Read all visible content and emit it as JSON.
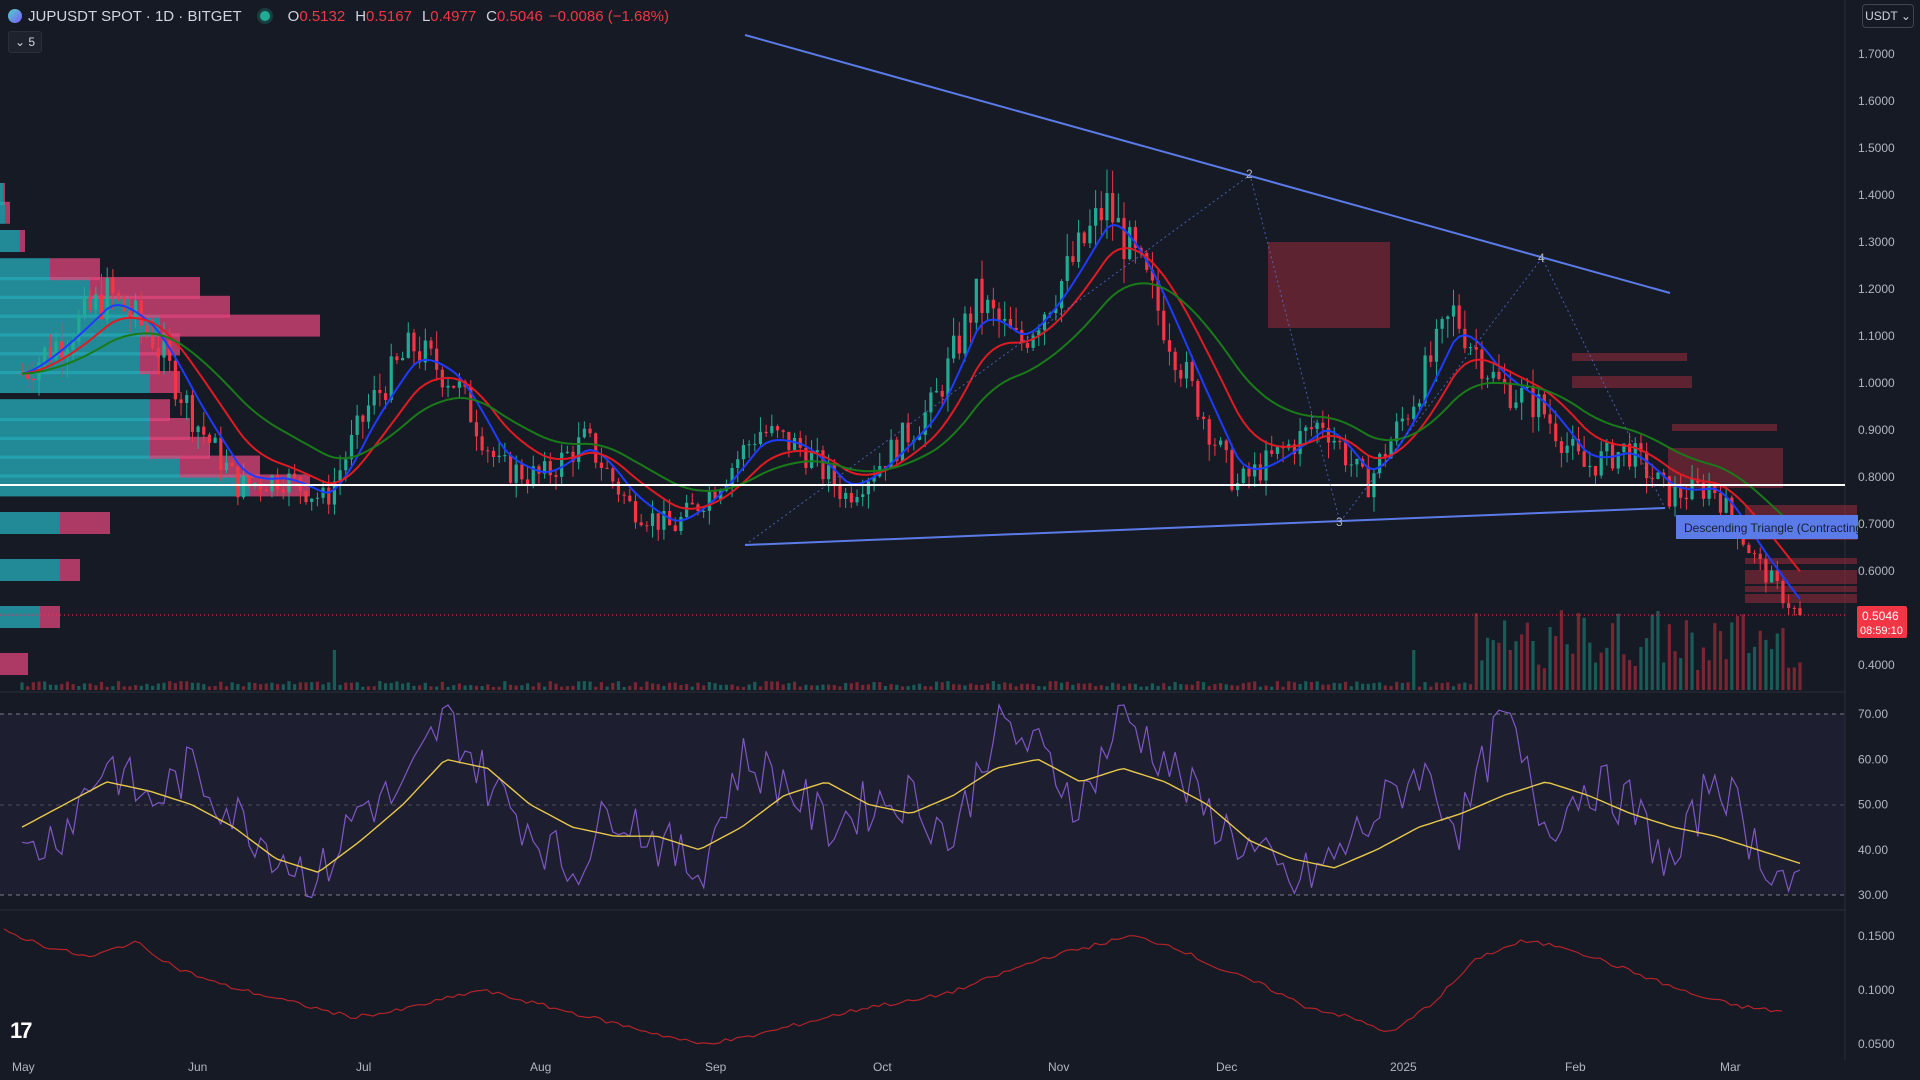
{
  "header": {
    "symbol": "JUPUSDT SPOT · 1D · BITGET",
    "open_label": "O",
    "open": "0.5132",
    "high_label": "H",
    "high": "0.5167",
    "low_label": "L",
    "low": "0.4977",
    "close_label": "C",
    "close": "0.5046",
    "change": "−0.0086 (−1.68%)"
  },
  "indicators_collapse": "5",
  "currency_button": "USDT",
  "price_badge": {
    "price": "0.5046",
    "countdown": "08:59:10"
  },
  "pattern_label": "Descending Triangle (Contracting",
  "pattern_points": [
    "2",
    "3",
    "4"
  ],
  "colors": {
    "background": "#161a25",
    "up": "#22ab94",
    "down": "#f23645",
    "trendline": "#5b7be8",
    "ema_fast": "#1e3cff",
    "ema_mid": "#e01b24",
    "ema_slow": "#1a7a1a",
    "rsi": "#7e57c2",
    "rsi_ma": "#e6c84a",
    "volatility": "#b2232a"
  },
  "chart_data": [
    {
      "type": "candlestick",
      "title": "JUPUSDT SPOT · 1D · BITGET",
      "x_tick_labels": [
        "May",
        "Jun",
        "Jul",
        "Aug",
        "Sep",
        "Oct",
        "Nov",
        "Dec",
        "2025",
        "Feb",
        "Mar"
      ],
      "y_tick_labels": [
        "1.7000",
        "1.6000",
        "1.5000",
        "1.4000",
        "1.3000",
        "1.2000",
        "1.1000",
        "1.0000",
        "0.9000",
        "0.8000",
        "0.7000",
        "0.6000",
        "0.4000"
      ],
      "ylim": [
        0.33,
        1.76
      ],
      "key_level": 0.78,
      "close_series_approx": [
        {
          "x": "May",
          "y": 1.02
        },
        {
          "x": "May 20",
          "y": 1.1
        },
        {
          "x": "May 25",
          "y": 1.19
        },
        {
          "x": "Jun",
          "y": 1.1
        },
        {
          "x": "Jun 15",
          "y": 0.92
        },
        {
          "x": "Jun 25",
          "y": 0.78
        },
        {
          "x": "Jul",
          "y": 0.8
        },
        {
          "x": "Jul 10",
          "y": 0.75
        },
        {
          "x": "Jul 20",
          "y": 0.95
        },
        {
          "x": "Jul 28",
          "y": 1.08
        },
        {
          "x": "Aug",
          "y": 1.0
        },
        {
          "x": "Aug 10",
          "y": 0.82
        },
        {
          "x": "Aug 20",
          "y": 0.8
        },
        {
          "x": "Aug 28",
          "y": 0.88
        },
        {
          "x": "Sep",
          "y": 0.74
        },
        {
          "x": "Sep 8",
          "y": 0.69
        },
        {
          "x": "Sep 20",
          "y": 0.78
        },
        {
          "x": "Sep 28",
          "y": 0.9
        },
        {
          "x": "Oct",
          "y": 0.86
        },
        {
          "x": "Oct 10",
          "y": 0.76
        },
        {
          "x": "Oct 20",
          "y": 0.85
        },
        {
          "x": "Nov",
          "y": 0.95
        },
        {
          "x": "Nov 10",
          "y": 1.18
        },
        {
          "x": "Nov 20",
          "y": 1.08
        },
        {
          "x": "Dec",
          "y": 1.22
        },
        {
          "x": "Dec 3",
          "y": 1.38
        },
        {
          "x": "Dec 8",
          "y": 1.2
        },
        {
          "x": "Dec 15",
          "y": 0.98
        },
        {
          "x": "Dec 20",
          "y": 0.78
        },
        {
          "x": "Dec 28",
          "y": 0.85
        },
        {
          "x": "2025",
          "y": 0.92
        },
        {
          "x": "Jan 10",
          "y": 0.78
        },
        {
          "x": "Jan 20",
          "y": 0.95
        },
        {
          "x": "Jan 25",
          "y": 1.15
        },
        {
          "x": "Jan 30",
          "y": 1.0
        },
        {
          "x": "Feb",
          "y": 0.95
        },
        {
          "x": "Feb 10",
          "y": 0.82
        },
        {
          "x": "Feb 18",
          "y": 0.86
        },
        {
          "x": "Feb 25",
          "y": 0.76
        },
        {
          "x": "Mar",
          "y": 0.78
        },
        {
          "x": "Mar 5",
          "y": 0.62
        },
        {
          "x": "Mar 10",
          "y": 0.5
        }
      ]
    },
    {
      "type": "line",
      "title": "RSI",
      "y_tick_labels": [
        "70.00",
        "60.00",
        "50.00",
        "40.00",
        "30.00"
      ],
      "ylim": [
        27,
        73
      ],
      "bands": [
        30,
        50,
        70
      ],
      "series": [
        {
          "values": [
            38,
            45,
            60,
            50,
            58,
            48,
            40,
            33,
            50,
            52,
            70,
            55,
            45,
            35,
            50,
            42,
            35,
            60,
            55,
            45,
            50,
            52,
            42,
            68,
            62,
            50,
            70,
            60,
            48,
            40,
            32,
            38,
            48,
            58,
            45,
            70,
            45,
            55,
            50,
            35,
            58,
            40,
            30
          ]
        },
        {
          "values": [
            45,
            50,
            55,
            53,
            50,
            45,
            38,
            35,
            42,
            50,
            60,
            58,
            50,
            45,
            43,
            43,
            40,
            45,
            52,
            55,
            50,
            48,
            52,
            58,
            60,
            55,
            58,
            55,
            50,
            42,
            38,
            36,
            40,
            45,
            48,
            52,
            55,
            52,
            48,
            45,
            43,
            40,
            37
          ]
        }
      ]
    },
    {
      "type": "line",
      "title": "Volatility",
      "y_tick_labels": [
        "0.1500",
        "0.1000",
        "0.0500"
      ],
      "ylim": [
        0.045,
        0.165
      ],
      "series": [
        {
          "values": [
            0.155,
            0.14,
            0.13,
            0.145,
            0.12,
            0.105,
            0.095,
            0.085,
            0.075,
            0.08,
            0.09,
            0.1,
            0.09,
            0.08,
            0.07,
            0.06,
            0.05,
            0.055,
            0.065,
            0.075,
            0.085,
            0.09,
            0.1,
            0.115,
            0.13,
            0.14,
            0.15,
            0.14,
            0.12,
            0.105,
            0.085,
            0.075,
            0.06,
            0.09,
            0.13,
            0.145,
            0.14,
            0.125,
            0.11,
            0.095,
            0.085,
            0.08
          ]
        }
      ]
    }
  ]
}
